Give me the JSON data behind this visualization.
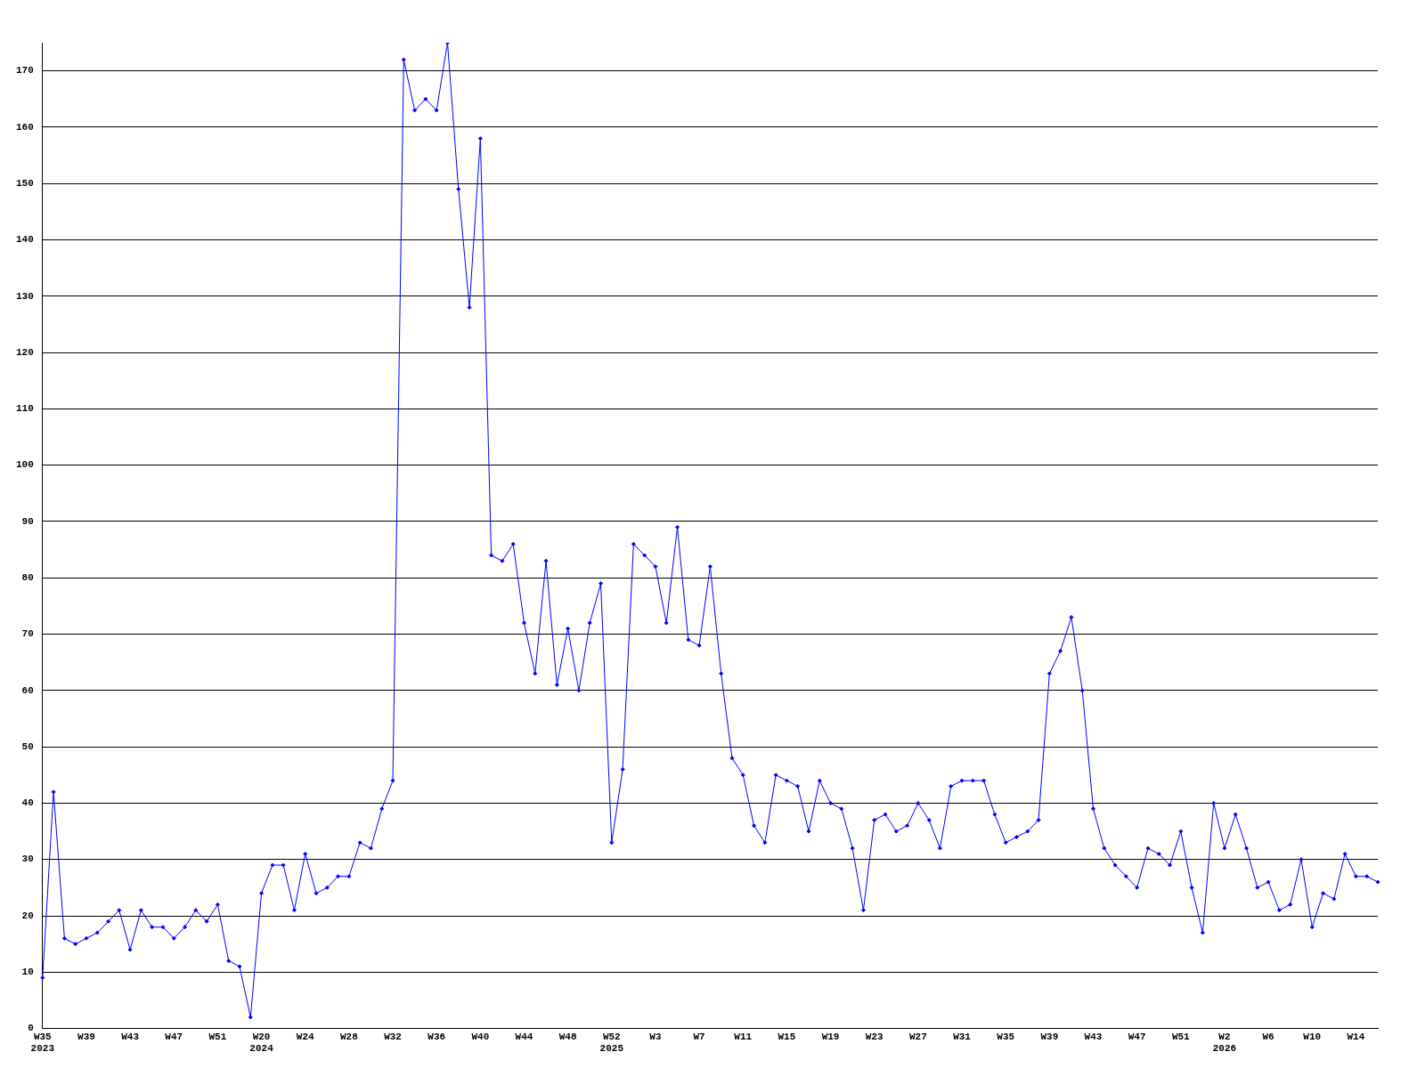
{
  "chart_data": {
    "type": "line",
    "categories": [
      "W35\n2023",
      null,
      null,
      null,
      "W39",
      null,
      null,
      null,
      "W43",
      null,
      null,
      null,
      "W47",
      null,
      null,
      null,
      "W51",
      null,
      null,
      null,
      "W20\n2024",
      null,
      null,
      null,
      "W24",
      null,
      null,
      null,
      "W28",
      null,
      null,
      null,
      "W32",
      null,
      null,
      null,
      "W36",
      null,
      null,
      null,
      "W40",
      null,
      null,
      null,
      "W44",
      null,
      null,
      null,
      "W48",
      null,
      null,
      null,
      "W52\n2025",
      null,
      null,
      null,
      "W3",
      null,
      null,
      null,
      "W7",
      null,
      null,
      null,
      "W11",
      null,
      null,
      null,
      "W15",
      null,
      null,
      null,
      "W19",
      null,
      null,
      null,
      "W23",
      null,
      null,
      null,
      "W27",
      null,
      null,
      null,
      "W31",
      null,
      null,
      null,
      "W35",
      null,
      null,
      null,
      "W39",
      null,
      null,
      null,
      "W43",
      null,
      null,
      null,
      "W47",
      null,
      null,
      null,
      "W51",
      null,
      null,
      null,
      "W2\n2026",
      null,
      null,
      null,
      "W6",
      null,
      null,
      null,
      "W10",
      null,
      null,
      null,
      "W14",
      null,
      null
    ],
    "series": [
      {
        "color": "#0000ff",
        "values": [
          9,
          42,
          16,
          15,
          16,
          17,
          19,
          21,
          14,
          21,
          18,
          18,
          16,
          18,
          21,
          19,
          22,
          12,
          11,
          2,
          24,
          29,
          29,
          21,
          31,
          24,
          25,
          27,
          27,
          33,
          32,
          39,
          44,
          172,
          163,
          165,
          163,
          175,
          149,
          128,
          158,
          84,
          83,
          86,
          72,
          63,
          83,
          61,
          71,
          60,
          72,
          79,
          33,
          46,
          86,
          84,
          82,
          72,
          89,
          69,
          68,
          82,
          63,
          48,
          45,
          36,
          33,
          45,
          44,
          43,
          35,
          44,
          40,
          39,
          32,
          21,
          37,
          38,
          35,
          36,
          40,
          37,
          32,
          43,
          44,
          44,
          44,
          38,
          33,
          34,
          35,
          37,
          63,
          67,
          73,
          60,
          39,
          32,
          29,
          27,
          25,
          32,
          31,
          29,
          35,
          25,
          17,
          40,
          32,
          38,
          32,
          25,
          26,
          21,
          22,
          30,
          18,
          24,
          23,
          31,
          27,
          27,
          26
        ]
      }
    ],
    "ylim": [
      0,
      175
    ],
    "yticks": [
      0,
      10,
      20,
      30,
      40,
      50,
      60,
      70,
      80,
      90,
      100,
      110,
      120,
      130,
      140,
      150,
      160,
      170
    ],
    "grid": "y",
    "legend": false,
    "marker": "diamond",
    "line_style": "solid"
  }
}
